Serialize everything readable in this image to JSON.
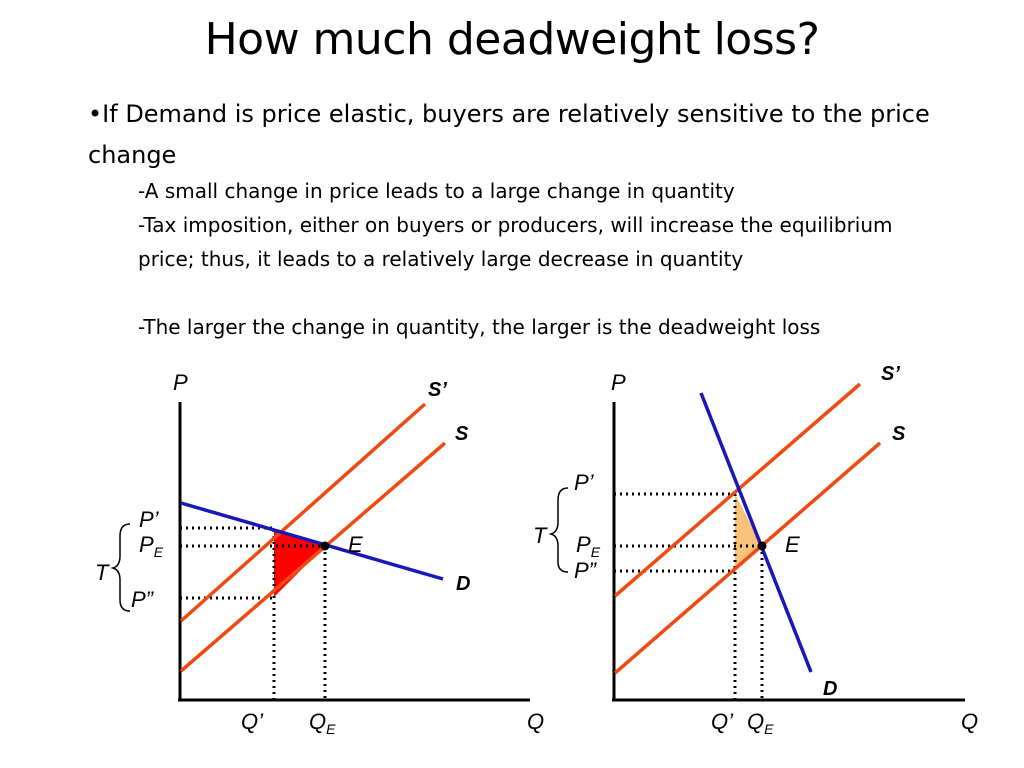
{
  "slide": {
    "title": "How much deadweight loss?",
    "bullet_marker": "•",
    "bullet_text": "If Demand is price elastic, buyers are relatively sensitive to the price change",
    "sub_points": [
      "-A small change in price leads to a large change in quantity",
      "-Tax imposition, either on buyers or producers, will increase the equilibrium price; thus, it leads to a relatively large decrease in quantity",
      "-The larger the change in quantity, the larger is the deadweight loss"
    ]
  },
  "diagram_left": {
    "y_axis": "P",
    "x_axis": "Q",
    "supply_shifted": "S’",
    "supply": "S",
    "demand": "D",
    "equilibrium": "E",
    "price_buyer": "P’",
    "price_eq_main": "P",
    "price_eq_sub": "E",
    "price_seller": "P”",
    "tax": "T",
    "qty_tax": "Q’",
    "qty_eq_main": "Q",
    "qty_eq_sub": "E",
    "deadweight_color": "#ff0000"
  },
  "diagram_right": {
    "y_axis": "P",
    "x_axis": "Q",
    "supply_shifted": "S’",
    "supply": "S",
    "demand": "D",
    "equilibrium": "E",
    "price_buyer": "P’",
    "price_eq_main": "P",
    "price_eq_sub": "E",
    "price_seller": "P”",
    "tax": "T",
    "qty_tax": "Q’",
    "qty_eq_main": "Q",
    "qty_eq_sub": "E",
    "deadweight_color": "#f9c17a"
  },
  "colors": {
    "supply_line": "#f04a13",
    "demand_line": "#1818b8",
    "axis": "#000000"
  }
}
